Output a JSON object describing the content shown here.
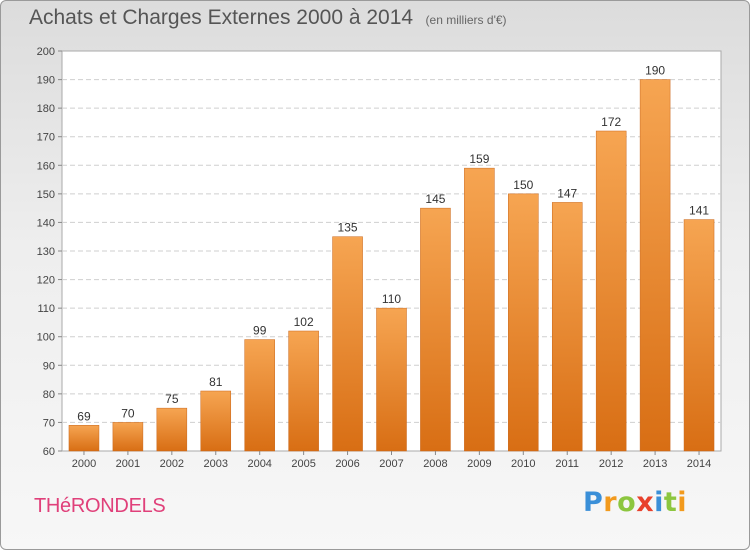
{
  "chart_data": {
    "type": "bar",
    "title": "Achats et Charges Externes 2000 à 2014",
    "subtitle": "(en milliers d'€)",
    "categories": [
      "2000",
      "2001",
      "2002",
      "2003",
      "2004",
      "2005",
      "2006",
      "2007",
      "2008",
      "2009",
      "2010",
      "2011",
      "2012",
      "2013",
      "2014"
    ],
    "values": [
      69,
      70,
      75,
      81,
      99,
      102,
      135,
      110,
      145,
      159,
      150,
      147,
      172,
      190,
      141
    ],
    "ylim": [
      60,
      200
    ],
    "yticks": [
      60,
      70,
      80,
      90,
      100,
      110,
      120,
      130,
      140,
      150,
      160,
      170,
      180,
      190,
      200
    ],
    "grid": true,
    "bar_color": "#f0913a"
  },
  "footer": {
    "commune": "THéRONDELS",
    "brand_letters": [
      {
        "ch": "P",
        "color": "#3a8fd8"
      },
      {
        "ch": "r",
        "color": "#f29a1d"
      },
      {
        "ch": "o",
        "color": "#8cc63f"
      },
      {
        "ch": "x",
        "color": "#e8412c"
      },
      {
        "ch": "i",
        "color": "#3a8fd8"
      },
      {
        "ch": "t",
        "color": "#8cc63f"
      },
      {
        "ch": "i",
        "color": "#f29a1d"
      }
    ]
  }
}
